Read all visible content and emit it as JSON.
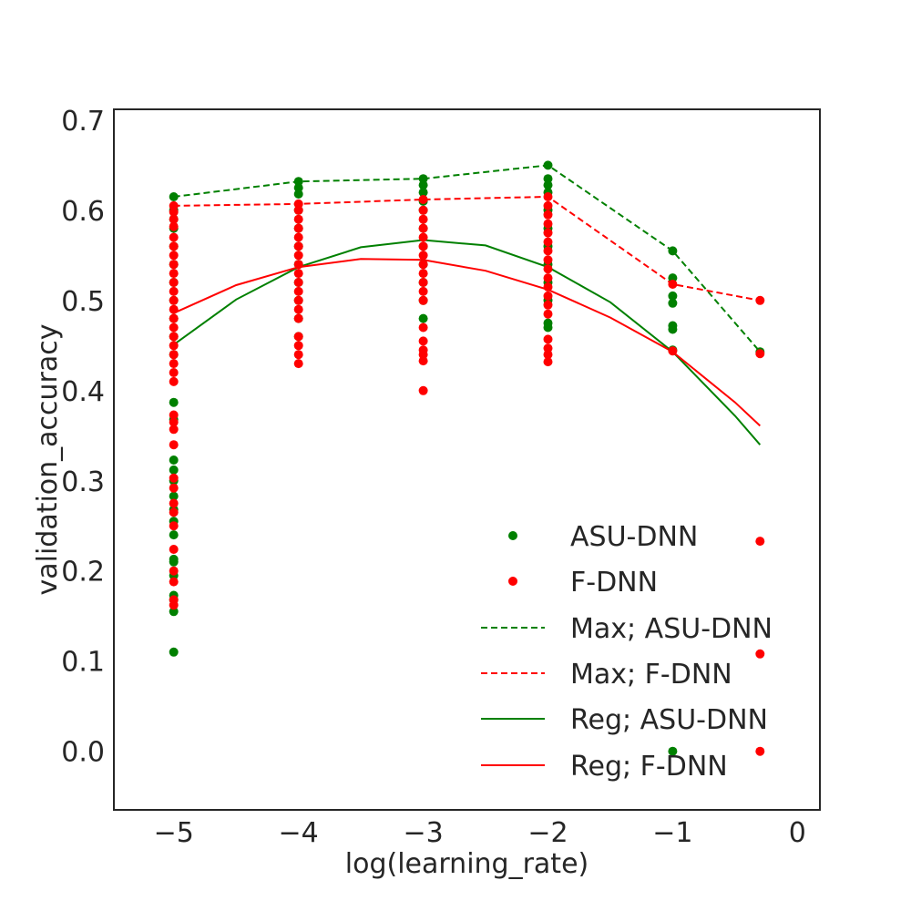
{
  "chart_data": {
    "type": "scatter",
    "title": "",
    "xlabel": "log(learning_rate)",
    "ylabel": "validation_accuracy",
    "xlim": [
      -5.48,
      0.18
    ],
    "ylim": [
      -0.065,
      0.712
    ],
    "x_ticks": [
      -5,
      -4,
      -3,
      -2,
      -1,
      0
    ],
    "x_tick_labels": [
      "−5",
      "−4",
      "−3",
      "−2",
      "−1",
      "0"
    ],
    "y_ticks": [
      0.0,
      0.1,
      0.2,
      0.3,
      0.4,
      0.5,
      0.6,
      0.7
    ],
    "y_tick_labels": [
      "0.0",
      "0.1",
      "0.2",
      "0.3",
      "0.4",
      "0.5",
      "0.6",
      "0.7"
    ],
    "grid": false,
    "legend_position": "lower-right",
    "colors": {
      "asu": "#008000",
      "fdnn": "#ff0000",
      "axes": "#262626"
    },
    "series": [
      {
        "name": "ASU-DNN",
        "kind": "scatter",
        "color": "#008000",
        "points": [
          [
            -5,
            0.615
          ],
          [
            -5,
            0.6
          ],
          [
            -5,
            0.59
          ],
          [
            -5,
            0.58
          ],
          [
            -5,
            0.56
          ],
          [
            -5,
            0.54
          ],
          [
            -5,
            0.52
          ],
          [
            -5,
            0.5
          ],
          [
            -5,
            0.48
          ],
          [
            -5,
            0.46
          ],
          [
            -5,
            0.44
          ],
          [
            -5,
            0.387
          ],
          [
            -5,
            0.368
          ],
          [
            -5,
            0.323
          ],
          [
            -5,
            0.312
          ],
          [
            -5,
            0.3
          ],
          [
            -5,
            0.283
          ],
          [
            -5,
            0.268
          ],
          [
            -5,
            0.255
          ],
          [
            -5,
            0.24
          ],
          [
            -5,
            0.213
          ],
          [
            -5,
            0.21
          ],
          [
            -5,
            0.195
          ],
          [
            -5,
            0.173
          ],
          [
            -5,
            0.168
          ],
          [
            -5,
            0.155
          ],
          [
            -5,
            0.11
          ],
          [
            -4,
            0.632
          ],
          [
            -4,
            0.625
          ],
          [
            -4,
            0.618
          ],
          [
            -4,
            0.6
          ],
          [
            -4,
            0.58
          ],
          [
            -4,
            0.56
          ],
          [
            -4,
            0.54
          ],
          [
            -4,
            0.52
          ],
          [
            -4,
            0.5
          ],
          [
            -4,
            0.48
          ],
          [
            -4,
            0.46
          ],
          [
            -3,
            0.635
          ],
          [
            -3,
            0.628
          ],
          [
            -3,
            0.62
          ],
          [
            -3,
            0.61
          ],
          [
            -3,
            0.6
          ],
          [
            -3,
            0.58
          ],
          [
            -3,
            0.56
          ],
          [
            -3,
            0.54
          ],
          [
            -3,
            0.52
          ],
          [
            -3,
            0.5
          ],
          [
            -3,
            0.48
          ],
          [
            -2,
            0.65
          ],
          [
            -2,
            0.635
          ],
          [
            -2,
            0.628
          ],
          [
            -2,
            0.62
          ],
          [
            -2,
            0.6
          ],
          [
            -2,
            0.58
          ],
          [
            -2,
            0.56
          ],
          [
            -2,
            0.54
          ],
          [
            -2,
            0.52
          ],
          [
            -2,
            0.5
          ],
          [
            -2,
            0.475
          ],
          [
            -2,
            0.47
          ],
          [
            -1,
            0.555
          ],
          [
            -1,
            0.525
          ],
          [
            -1,
            0.505
          ],
          [
            -1,
            0.497
          ],
          [
            -1,
            0.472
          ],
          [
            -1,
            0.468
          ],
          [
            -1,
            0.445
          ],
          [
            -1,
            0.0
          ],
          [
            -0.3,
            0.443
          ]
        ]
      },
      {
        "name": "F-DNN",
        "kind": "scatter",
        "color": "#ff0000",
        "points": [
          [
            -5,
            0.605
          ],
          [
            -5,
            0.598
          ],
          [
            -5,
            0.59
          ],
          [
            -5,
            0.582
          ],
          [
            -5,
            0.57
          ],
          [
            -5,
            0.56
          ],
          [
            -5,
            0.55
          ],
          [
            -5,
            0.54
          ],
          [
            -5,
            0.53
          ],
          [
            -5,
            0.52
          ],
          [
            -5,
            0.51
          ],
          [
            -5,
            0.5
          ],
          [
            -5,
            0.49
          ],
          [
            -5,
            0.48
          ],
          [
            -5,
            0.47
          ],
          [
            -5,
            0.46
          ],
          [
            -5,
            0.45
          ],
          [
            -5,
            0.44
          ],
          [
            -5,
            0.43
          ],
          [
            -5,
            0.42
          ],
          [
            -5,
            0.41
          ],
          [
            -5,
            0.373
          ],
          [
            -5,
            0.365
          ],
          [
            -5,
            0.357
          ],
          [
            -5,
            0.34
          ],
          [
            -5,
            0.303
          ],
          [
            -5,
            0.292
          ],
          [
            -5,
            0.275
          ],
          [
            -5,
            0.265
          ],
          [
            -5,
            0.25
          ],
          [
            -5,
            0.224
          ],
          [
            -5,
            0.2
          ],
          [
            -5,
            0.188
          ],
          [
            -5,
            0.168
          ],
          [
            -5,
            0.162
          ],
          [
            -4,
            0.607
          ],
          [
            -4,
            0.6
          ],
          [
            -4,
            0.59
          ],
          [
            -4,
            0.58
          ],
          [
            -4,
            0.57
          ],
          [
            -4,
            0.56
          ],
          [
            -4,
            0.55
          ],
          [
            -4,
            0.54
          ],
          [
            -4,
            0.53
          ],
          [
            -4,
            0.52
          ],
          [
            -4,
            0.51
          ],
          [
            -4,
            0.5
          ],
          [
            -4,
            0.49
          ],
          [
            -4,
            0.48
          ],
          [
            -4,
            0.46
          ],
          [
            -4,
            0.45
          ],
          [
            -4,
            0.44
          ],
          [
            -4,
            0.43
          ],
          [
            -3,
            0.612
          ],
          [
            -3,
            0.6
          ],
          [
            -3,
            0.59
          ],
          [
            -3,
            0.58
          ],
          [
            -3,
            0.57
          ],
          [
            -3,
            0.56
          ],
          [
            -3,
            0.55
          ],
          [
            -3,
            0.54
          ],
          [
            -3,
            0.53
          ],
          [
            -3,
            0.52
          ],
          [
            -3,
            0.51
          ],
          [
            -3,
            0.5
          ],
          [
            -3,
            0.47
          ],
          [
            -3,
            0.455
          ],
          [
            -3,
            0.445
          ],
          [
            -3,
            0.44
          ],
          [
            -3,
            0.433
          ],
          [
            -3,
            0.4
          ],
          [
            -2,
            0.615
          ],
          [
            -2,
            0.605
          ],
          [
            -2,
            0.595
          ],
          [
            -2,
            0.585
          ],
          [
            -2,
            0.575
          ],
          [
            -2,
            0.565
          ],
          [
            -2,
            0.555
          ],
          [
            -2,
            0.545
          ],
          [
            -2,
            0.535
          ],
          [
            -2,
            0.525
          ],
          [
            -2,
            0.515
          ],
          [
            -2,
            0.505
          ],
          [
            -2,
            0.495
          ],
          [
            -2,
            0.485
          ],
          [
            -2,
            0.457
          ],
          [
            -2,
            0.447
          ],
          [
            -2,
            0.44
          ],
          [
            -2,
            0.432
          ],
          [
            -1,
            0.518
          ],
          [
            -1,
            0.444
          ],
          [
            -0.3,
            0.5
          ],
          [
            -0.3,
            0.441
          ],
          [
            -0.3,
            0.233
          ],
          [
            -0.3,
            0.108
          ],
          [
            -0.3,
            0.0
          ]
        ]
      },
      {
        "name": "Max; ASU-DNN",
        "kind": "line",
        "dash": "dashed",
        "color": "#008000",
        "x": [
          -5,
          -4,
          -3,
          -2,
          -1,
          -0.3
        ],
        "y": [
          0.615,
          0.632,
          0.635,
          0.65,
          0.555,
          0.443
        ]
      },
      {
        "name": "Max; F-DNN",
        "kind": "line",
        "dash": "dashed",
        "color": "#ff0000",
        "x": [
          -5,
          -4,
          -3,
          -2,
          -1,
          -0.3
        ],
        "y": [
          0.605,
          0.607,
          0.612,
          0.615,
          0.518,
          0.5
        ]
      },
      {
        "name": "Reg; ASU-DNN",
        "kind": "curve",
        "dash": "solid",
        "color": "#008000",
        "x": [
          -5,
          -4.5,
          -4,
          -3.5,
          -3,
          -2.5,
          -2,
          -1.5,
          -1,
          -0.5,
          -0.3
        ],
        "y": [
          0.451,
          0.501,
          0.537,
          0.559,
          0.567,
          0.561,
          0.537,
          0.498,
          0.443,
          0.372,
          0.34
        ]
      },
      {
        "name": "Reg; F-DNN",
        "kind": "curve",
        "dash": "solid",
        "color": "#ff0000",
        "x": [
          -5,
          -4.5,
          -4,
          -3.5,
          -3,
          -2.5,
          -2,
          -1.5,
          -1,
          -0.5,
          -0.3
        ],
        "y": [
          0.486,
          0.517,
          0.537,
          0.546,
          0.545,
          0.533,
          0.512,
          0.481,
          0.443,
          0.387,
          0.361
        ]
      }
    ]
  }
}
